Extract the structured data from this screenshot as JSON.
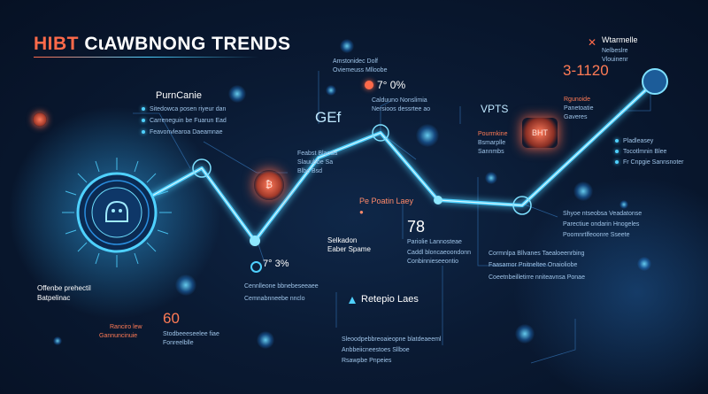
{
  "title": {
    "main": "HIBT",
    "rest": " CɩAWBNONG TRENDS"
  },
  "corner": {
    "label": "Wtarmelle",
    "sub": "Vlouinenr"
  },
  "labels": {
    "top_mid": "Amstonidec Dolf",
    "pct_top": "7° 0%",
    "gf": "GEf",
    "vpts": "VPTS",
    "num_3120": "3-1120",
    "purncanie": "PurnCanie",
    "rp_stat": "Pe Poatin Laey",
    "num_78": "78",
    "selkadon": "Selkadon",
    "selkadon_sub": "Eaber Spame",
    "pct_bottom": "7° 3%",
    "num_60": "60",
    "retepio": "Retepio Laes",
    "left_bottom": "Offenbe prehectil",
    "left_bottom2": "Batpelinac",
    "rankiro": "Ranciro lew",
    "rankiro2": "Gannuncinuie"
  },
  "texts": {
    "left_list": [
      "Sitedowca posen riyeur dan",
      "Carreneguin be Fuarun Ead",
      "Feavonvlearoa Daeamnae"
    ],
    "top_mid_lines": [
      "Oviemeuss Mlloobe"
    ],
    "pct_top_lines": [
      "Calduuno Nonslimia",
      "Nersioos dessrtee ao"
    ],
    "gf_lines": [
      "Feabst Blanda",
      "Slauubbe Sa",
      "Blbe Bsd"
    ],
    "vpts_lines": [
      "Pourmkine",
      "Bsmarplle",
      "Sannmbs"
    ],
    "orange_list": [
      "Rgunoide",
      "Panetoatie",
      "Gaveres"
    ],
    "right_list": [
      "Pladleasey",
      "Tocotlmnin Blee",
      "Fr Cnpgie Sannsnoter"
    ],
    "right_mid": [
      "Shyoe ntseobsa Veadatonse",
      "Parectiue ondarin Hnogeles",
      "Poomnrtlfeoonre Sseete"
    ],
    "right_low": [
      "Cormnlpa Bllvanes Taealoeenrbing",
      "Faasarnor Pnitneltee Onaioliobe",
      "Coeetnbeilletirre nniteavnsa Ponae"
    ],
    "n78_lines": [
      "Pariolie Lannosteae",
      "Caddl bloncaeoondonn",
      "Conbinnieseeontio"
    ],
    "pct_bottom_lines": [
      "Cennlleone bbnebeseeaee",
      "Cemnabnneebe nnclo"
    ],
    "n60_lines": [
      "Stodbeeeseelee fiae",
      "Fonreelblle"
    ],
    "ret_lines": [
      "Sleoodpebbreoaieopne blatdeaeeml",
      "Anbbeiicneestoes Sllboe",
      "Rsawpbe Pnpeies"
    ],
    "corner_lines": [
      "Nelbeslre",
      "Vlouinenr"
    ]
  },
  "colors": {
    "accent": "#ff6a4a",
    "glow": "#4fd1ff",
    "background": "#0a1a33"
  }
}
